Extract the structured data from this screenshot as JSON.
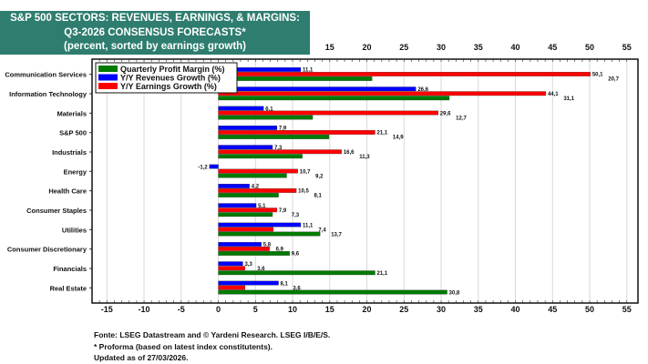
{
  "title": {
    "line1": "S&P 500 SECTORS: REVENUES, EARNINGS, & MARGINS:",
    "line2": "Q3-2026 CONSENSUS FORECASTS*",
    "line3": "(percent, sorted by earnings growth)"
  },
  "footer": {
    "source": "Fonte: LSEG Datastream and © Yardeni Research. LSEG I/B/E/S.",
    "note": "* Proforma (based on latest index constitutents).",
    "updated": "Updated as of 27/03/2026."
  },
  "chart_data": {
    "type": "bar",
    "orientation": "horizontal",
    "title": "S&P 500 SECTORS: REVENUES, EARNINGS, & MARGINS: Q3-2026 CONSENSUS FORECASTS*",
    "xlabel": "",
    "ylabel": "",
    "xlim": [
      -17,
      56.5
    ],
    "xticks": [
      -15,
      -10,
      -5,
      0,
      5,
      10,
      15,
      20,
      25,
      30,
      35,
      40,
      45,
      50,
      55
    ],
    "grid": true,
    "legend_position": "top-left",
    "categories": [
      "Communication Services",
      "Information Technology",
      "Materials",
      "S&P 500",
      "Industrials",
      "Energy",
      "Health Care",
      "Consumer Staples",
      "Utilities",
      "Consumer Discretionary",
      "Financials",
      "Real Estate"
    ],
    "series": [
      {
        "name": "Y/Y Revenues Growth (%)",
        "color": "#0000ff",
        "values": [
          11.1,
          26.6,
          6.1,
          7.9,
          7.3,
          -1.2,
          4.2,
          5.1,
          11.1,
          5.8,
          3.3,
          8.1
        ]
      },
      {
        "name": "Y/Y Earnings Growth (%)",
        "color": "#ff0000",
        "values": [
          50.1,
          44.1,
          29.6,
          21.1,
          16.6,
          10.7,
          10.5,
          7.9,
          7.4,
          6.9,
          3.6,
          3.6
        ]
      },
      {
        "name": "Quarterly Profit Margin (%)",
        "color": "#007a00",
        "values": [
          20.7,
          31.1,
          12.7,
          14.9,
          11.3,
          9.2,
          8.1,
          7.3,
          13.7,
          9.6,
          21.1,
          30.8
        ]
      }
    ],
    "legend_order": [
      2,
      0,
      1
    ]
  }
}
